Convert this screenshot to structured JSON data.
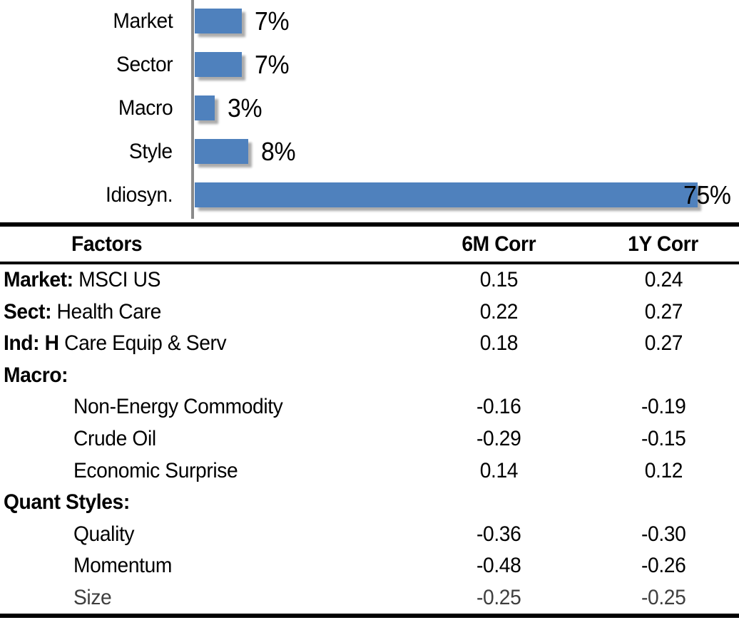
{
  "colors": {
    "bar_fill": "#4f81bd",
    "axis_line": "#8a8a8a",
    "rule": "#000000",
    "text": "#000000"
  },
  "chart_data": [
    {
      "type": "bar",
      "orientation": "horizontal",
      "title": "",
      "xlabel": "",
      "ylabel": "",
      "categories": [
        "Market",
        "Sector",
        "Macro",
        "Style",
        "Idiosyn."
      ],
      "values": [
        7,
        7,
        3,
        8,
        75
      ],
      "value_labels": [
        "7%",
        "7%",
        "3%",
        "8%",
        "75%"
      ],
      "unit": "percent",
      "xlim": [
        0,
        80
      ],
      "grid": false,
      "legend": false,
      "bar_color": "#4f81bd"
    },
    {
      "type": "table",
      "columns": [
        "Factors",
        "6M Corr",
        "1Y Corr"
      ],
      "rows": [
        {
          "factor": "Market: MSCI US",
          "bold_part": "Market:",
          "regular_part": " MSCI US",
          "indent": false,
          "muted": false,
          "corr_6m": "0.15",
          "corr_1y": "0.24"
        },
        {
          "factor": "Sect: Health Care",
          "bold_part": "Sect:",
          "regular_part": " Health Care",
          "indent": false,
          "muted": false,
          "corr_6m": "0.22",
          "corr_1y": "0.27"
        },
        {
          "factor": "Ind: H Care Equip & Serv",
          "bold_part": "Ind: H",
          "regular_part": " Care Equip & Serv",
          "indent": false,
          "muted": false,
          "corr_6m": "0.18",
          "corr_1y": "0.27"
        },
        {
          "factor": "Macro:",
          "bold_part": "Macro:",
          "regular_part": "",
          "indent": false,
          "muted": false,
          "corr_6m": "",
          "corr_1y": ""
        },
        {
          "factor": "Non-Energy Commodity",
          "bold_part": "",
          "regular_part": "Non-Energy Commodity",
          "indent": true,
          "muted": false,
          "corr_6m": "-0.16",
          "corr_1y": "-0.19"
        },
        {
          "factor": "Crude Oil",
          "bold_part": "",
          "regular_part": "Crude Oil",
          "indent": true,
          "muted": false,
          "corr_6m": "-0.29",
          "corr_1y": "-0.15"
        },
        {
          "factor": "Economic Surprise",
          "bold_part": "",
          "regular_part": "Economic Surprise",
          "indent": true,
          "muted": false,
          "corr_6m": "0.14",
          "corr_1y": "0.12"
        },
        {
          "factor": "Quant Styles:",
          "bold_part": "Quant Styles:",
          "regular_part": "",
          "indent": false,
          "muted": false,
          "corr_6m": "",
          "corr_1y": ""
        },
        {
          "factor": "Quality",
          "bold_part": "",
          "regular_part": "Quality",
          "indent": true,
          "muted": false,
          "corr_6m": "-0.36",
          "corr_1y": "-0.30"
        },
        {
          "factor": "Momentum",
          "bold_part": "",
          "regular_part": "Momentum",
          "indent": true,
          "muted": false,
          "corr_6m": "-0.48",
          "corr_1y": "-0.26"
        },
        {
          "factor": "Size",
          "bold_part": "",
          "regular_part": "Size",
          "indent": true,
          "muted": true,
          "corr_6m": "-0.25",
          "corr_1y": "-0.25"
        }
      ]
    }
  ]
}
